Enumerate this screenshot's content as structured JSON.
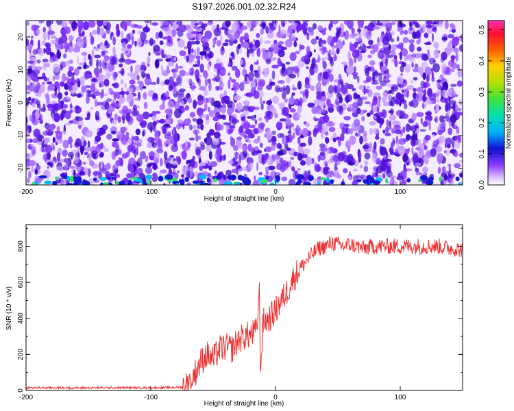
{
  "figure": {
    "title": "S197.2026.001.02.32.R24"
  },
  "colors": {
    "line": "#ee3333",
    "axis": "#000000",
    "background": "#ffffff",
    "colormap": [
      "#ffffff",
      "#d9b8ff",
      "#9a55ff",
      "#5a1ee0",
      "#1515d8",
      "#00a8ff",
      "#00e0c0",
      "#3fe03f",
      "#d8e000",
      "#ff9a00",
      "#ff2020",
      "#ff30b0"
    ]
  },
  "chart_data": [
    {
      "type": "heatmap",
      "title": "",
      "xlabel": "Height of straight line (km)",
      "ylabel": "Frequency (Hz)",
      "xlim": [
        -200,
        150
      ],
      "ylim": [
        -25,
        25
      ],
      "x_ticks": [
        "-200",
        "-100",
        "0",
        "100"
      ],
      "y_ticks": [
        "-20",
        "-10",
        "0",
        "10",
        "20"
      ],
      "colorbar": {
        "label": "Normalized spectral amplitude",
        "range": [
          0,
          0.53
        ],
        "ticks": [
          "0.0",
          "0.1",
          "0.2",
          "0.3",
          "0.4",
          "0.5"
        ]
      },
      "grid": false,
      "description_values": {
        "typical_amplitude": 0.05,
        "max_amplitude": 0.2,
        "strong_band_frequency": -24
      }
    },
    {
      "type": "line",
      "title": "",
      "xlabel": "Height of straight line (km)",
      "ylabel": "SNR (10 * v/v)",
      "xlim": [
        -200,
        150
      ],
      "ylim": [
        0,
        920
      ],
      "x_ticks": [
        "-200",
        "-100",
        "0",
        "100"
      ],
      "y_ticks": [
        "0",
        "200",
        "400",
        "600",
        "800"
      ],
      "grid": false,
      "series": [
        {
          "name": "",
          "x": [
            -200,
            -180,
            -160,
            -140,
            -120,
            -100,
            -85,
            -75,
            -70,
            -65,
            -60,
            -55,
            -50,
            -45,
            -40,
            -35,
            -30,
            -25,
            -20,
            -15,
            -13,
            -12,
            -10,
            -5,
            0,
            5,
            10,
            15,
            20,
            25,
            30,
            35,
            40,
            45,
            50,
            55,
            60,
            65,
            70,
            80,
            90,
            100,
            110,
            120,
            130,
            140,
            150
          ],
          "y": [
            15,
            15,
            14,
            15,
            15,
            15,
            16,
            18,
            40,
            90,
            160,
            200,
            170,
            230,
            240,
            230,
            280,
            300,
            310,
            330,
            560,
            100,
            380,
            400,
            440,
            500,
            560,
            630,
            680,
            720,
            760,
            790,
            800,
            820,
            810,
            800,
            810,
            800,
            790,
            800,
            800,
            800,
            800,
            800,
            800,
            790,
            780
          ]
        }
      ]
    }
  ]
}
